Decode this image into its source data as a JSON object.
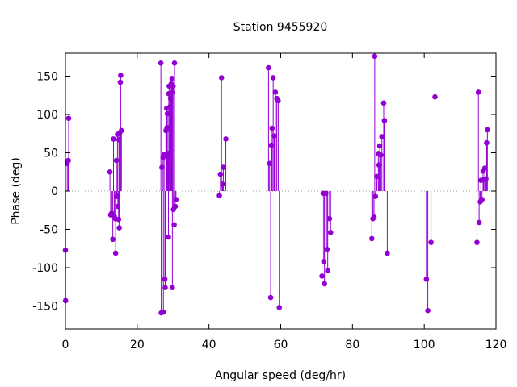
{
  "chart_data": {
    "type": "stem",
    "title": "Station 9455920",
    "xlabel": "Angular speed (deg/hr)",
    "ylabel": "Phase (deg)",
    "xlim": [
      0,
      120
    ],
    "ylim": [
      -180,
      180
    ],
    "xticks": [
      0,
      20,
      40,
      60,
      80,
      100,
      120
    ],
    "yticks": [
      -150,
      -100,
      -50,
      0,
      50,
      100,
      150
    ],
    "grid": false,
    "zero_line": "dotted",
    "colors": {
      "series": "#9400d3",
      "axis": "#000000",
      "zero_line": "#a0a0a0"
    },
    "series": [
      {
        "points": [
          [
            0.0,
            -77
          ],
          [
            0.04,
            -143
          ],
          [
            0.5,
            36
          ],
          [
            0.8,
            40
          ],
          [
            0.9,
            95
          ],
          [
            12.4,
            25
          ],
          [
            12.6,
            -31
          ],
          [
            12.9,
            -29
          ],
          [
            13.2,
            -63
          ],
          [
            13.4,
            68
          ],
          [
            13.6,
            -33
          ],
          [
            13.9,
            -36
          ],
          [
            14.0,
            -81
          ],
          [
            14.2,
            40
          ],
          [
            14.3,
            -7
          ],
          [
            14.5,
            74
          ],
          [
            14.6,
            -20
          ],
          [
            14.8,
            -37
          ],
          [
            14.9,
            67
          ],
          [
            15.0,
            -48
          ],
          [
            15.1,
            76
          ],
          [
            15.3,
            142
          ],
          [
            15.4,
            151
          ],
          [
            15.6,
            79
          ],
          [
            26.6,
            167
          ],
          [
            26.7,
            -159
          ],
          [
            26.9,
            31
          ],
          [
            27.2,
            44
          ],
          [
            27.3,
            -158
          ],
          [
            27.5,
            48
          ],
          [
            27.7,
            -115
          ],
          [
            27.8,
            -126
          ],
          [
            28.0,
            79
          ],
          [
            28.2,
            108
          ],
          [
            28.3,
            83
          ],
          [
            28.4,
            101
          ],
          [
            28.6,
            49
          ],
          [
            28.7,
            -60
          ],
          [
            28.8,
            127
          ],
          [
            28.9,
            137
          ],
          [
            29.1,
            110
          ],
          [
            29.3,
            121
          ],
          [
            29.5,
            140
          ],
          [
            29.7,
            147
          ],
          [
            29.8,
            -126
          ],
          [
            29.9,
            129
          ],
          [
            30.0,
            137
          ],
          [
            30.1,
            -24
          ],
          [
            30.3,
            -44
          ],
          [
            30.4,
            167
          ],
          [
            30.6,
            -20
          ],
          [
            30.8,
            -11
          ],
          [
            42.9,
            -6
          ],
          [
            43.2,
            22
          ],
          [
            43.5,
            148
          ],
          [
            43.8,
            9
          ],
          [
            44.0,
            31
          ],
          [
            44.7,
            68
          ],
          [
            56.6,
            161
          ],
          [
            56.9,
            36
          ],
          [
            57.2,
            -139
          ],
          [
            57.4,
            60
          ],
          [
            57.6,
            82
          ],
          [
            57.9,
            148
          ],
          [
            58.2,
            72
          ],
          [
            58.5,
            129
          ],
          [
            58.9,
            121
          ],
          [
            59.3,
            118
          ],
          [
            59.6,
            -152
          ],
          [
            71.5,
            -111
          ],
          [
            71.8,
            -3
          ],
          [
            72.0,
            -92
          ],
          [
            72.2,
            -121
          ],
          [
            72.6,
            -3
          ],
          [
            72.9,
            -76
          ],
          [
            73.1,
            -104
          ],
          [
            73.6,
            -36
          ],
          [
            73.9,
            -54
          ],
          [
            85.4,
            -62
          ],
          [
            85.7,
            -36
          ],
          [
            86.0,
            -34
          ],
          [
            86.2,
            176
          ],
          [
            86.4,
            -7
          ],
          [
            86.8,
            19
          ],
          [
            87.2,
            49
          ],
          [
            87.4,
            34
          ],
          [
            87.6,
            59
          ],
          [
            87.9,
            47
          ],
          [
            88.2,
            71
          ],
          [
            88.7,
            115
          ],
          [
            88.9,
            92
          ],
          [
            89.7,
            -81
          ],
          [
            100.6,
            -115
          ],
          [
            101.0,
            -156
          ],
          [
            101.9,
            -67
          ],
          [
            103.0,
            123
          ],
          [
            114.7,
            -67
          ],
          [
            115.1,
            129
          ],
          [
            115.3,
            -41
          ],
          [
            115.6,
            -14
          ],
          [
            115.8,
            14
          ],
          [
            116.1,
            -11
          ],
          [
            116.4,
            26
          ],
          [
            116.6,
            15
          ],
          [
            116.9,
            30
          ],
          [
            117.2,
            16
          ],
          [
            117.4,
            63
          ],
          [
            117.6,
            80
          ]
        ]
      }
    ]
  }
}
